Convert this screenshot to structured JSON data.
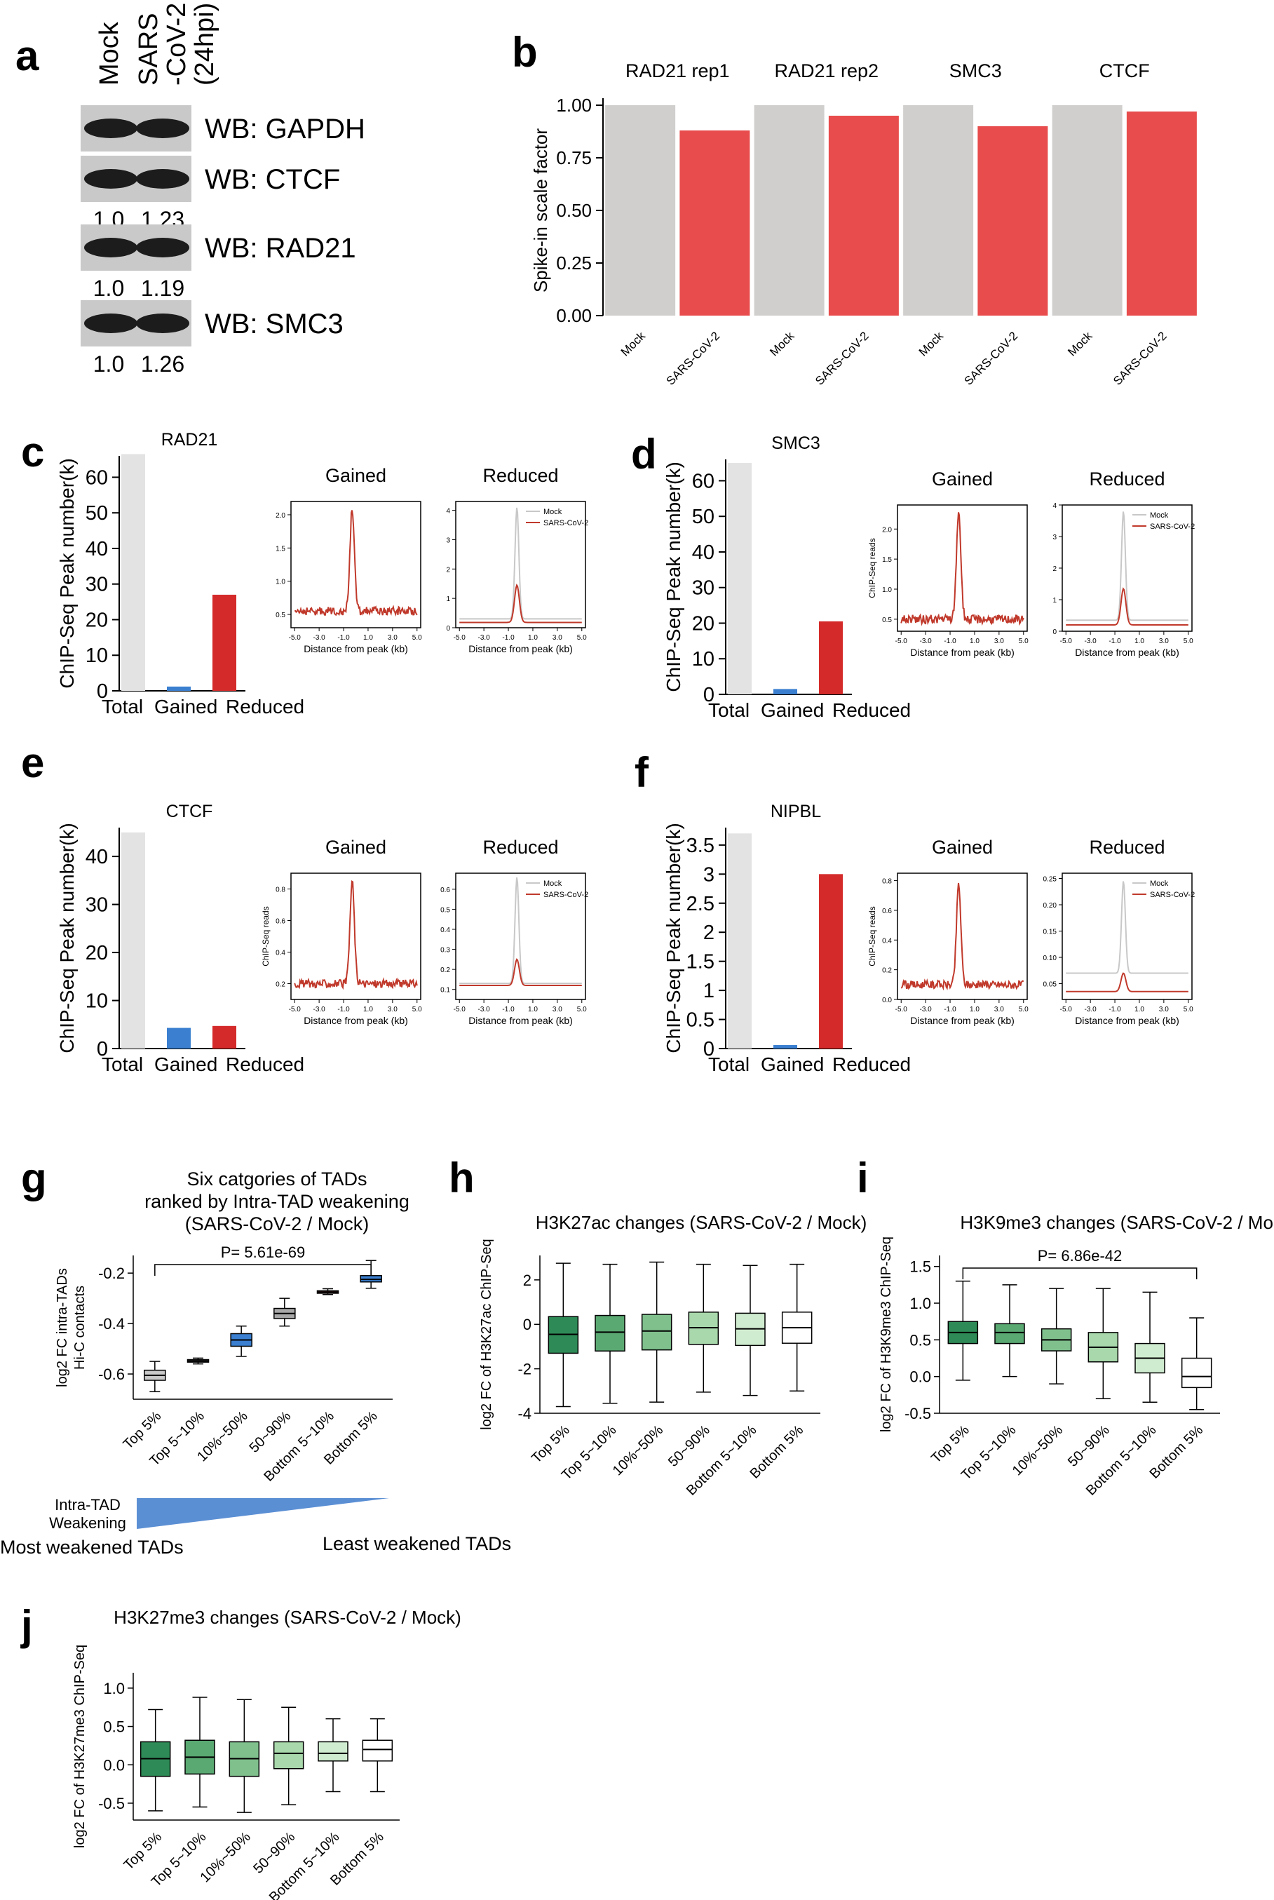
{
  "panels": {
    "a": {
      "letter": "a",
      "columns": [
        "Mock",
        "SARS-CoV-2 (24hpi)"
      ],
      "col_lines": [
        [
          "Mock"
        ],
        [
          "SARS",
          "-CoV-2",
          "(24hpi)"
        ]
      ],
      "blots": [
        {
          "name": "WB: GAPDH",
          "quant": []
        },
        {
          "name": "WB: CTCF",
          "quant": [
            "1.0",
            "1.23"
          ]
        },
        {
          "name": "WB: RAD21",
          "quant": [
            "1.0",
            "1.19"
          ]
        },
        {
          "name": "WB: SMC3",
          "quant": [
            "1.0",
            "1.26"
          ]
        }
      ]
    },
    "b": {
      "letter": "b",
      "chart_data": {
        "type": "bar",
        "ylabel": "Spike-in scale factor",
        "ylim": [
          0,
          1.0
        ],
        "yticks": [
          "0.00",
          "0.25",
          "0.50",
          "0.75",
          "1.00"
        ],
        "groups": [
          "RAD21 rep1",
          "RAD21 rep2",
          "SMC3",
          "CTCF"
        ],
        "categories": [
          "Mock",
          "SARS-CoV-2",
          "Mock",
          "SARS-CoV-2",
          "Mock",
          "SARS-CoV-2",
          "Mock",
          "SARS-CoV-2"
        ],
        "values": [
          1.0,
          0.88,
          1.0,
          0.95,
          1.0,
          0.9,
          1.0,
          0.97
        ],
        "colors": [
          "#d0cfcd",
          "#e84c4c",
          "#d0cfcd",
          "#e84c4c",
          "#d0cfcd",
          "#e84c4c",
          "#d0cfcd",
          "#e84c4c"
        ]
      }
    },
    "c": {
      "letter": "c",
      "bar": {
        "title": "RAD21",
        "ylabel": "ChIP-Seq Peak number(k)",
        "yticks": [
          "0",
          "10",
          "20",
          "30",
          "40",
          "50",
          "60"
        ],
        "ymax": 66,
        "categories": [
          "Total",
          "Gained",
          "Reduced"
        ],
        "values": [
          66.5,
          1.2,
          27
        ]
      },
      "gained": {
        "title": "Gained",
        "ylabel": "",
        "yticks": [
          "0.5",
          "1.0",
          "1.5",
          "2.0"
        ],
        "ymin": 0.3,
        "ymax": 2.2,
        "base": 0.55,
        "peak": 2.1,
        "legend": false
      },
      "reduced": {
        "title": "Reduced",
        "ylabel": "",
        "yticks": [
          "0",
          "1",
          "2",
          "3",
          "4"
        ],
        "ymin": 0,
        "ymax": 4.3,
        "mock_base": 0.3,
        "mock_peak": 4.1,
        "sars_base": 0.18,
        "sars_peak": 1.45,
        "legend": true
      }
    },
    "d": {
      "letter": "d",
      "bar": {
        "title": "SMC3",
        "ylabel": "ChIP-Seq Peak number(k)",
        "yticks": [
          "0",
          "10",
          "20",
          "30",
          "40",
          "50",
          "60"
        ],
        "ymax": 66,
        "categories": [
          "Total",
          "Gained",
          "Reduced"
        ],
        "values": [
          65,
          1.5,
          20.5
        ]
      },
      "gained": {
        "title": "Gained",
        "ylabel": "ChIP-Seq reads",
        "yticks": [
          "0.5",
          "1.0",
          "1.5",
          "2.0"
        ],
        "ymin": 0.3,
        "ymax": 2.4,
        "base": 0.5,
        "peak": 2.3,
        "legend": false
      },
      "reduced": {
        "title": "Reduced",
        "ylabel": "",
        "yticks": [
          "0",
          "1",
          "2",
          "3",
          "4"
        ],
        "ymin": 0,
        "ymax": 4.0,
        "mock_base": 0.35,
        "mock_peak": 3.8,
        "sars_base": 0.2,
        "sars_peak": 1.35,
        "legend": true
      }
    },
    "e": {
      "letter": "e",
      "bar": {
        "title": "CTCF",
        "ylabel": "ChIP-Seq Peak number(k)",
        "yticks": [
          "0",
          "10",
          "20",
          "30",
          "40"
        ],
        "ymax": 46,
        "categories": [
          "Total",
          "Gained",
          "Reduced"
        ],
        "values": [
          45,
          4.3,
          4.7
        ]
      },
      "gained": {
        "title": "Gained",
        "ylabel": "ChIP-Seq reads",
        "yticks": [
          "0.2",
          "0.4",
          "0.6",
          "0.8"
        ],
        "ymin": 0.1,
        "ymax": 0.9,
        "base": 0.2,
        "peak": 0.85,
        "legend": false
      },
      "reduced": {
        "title": "Reduced",
        "ylabel": "",
        "yticks": [
          "0.1",
          "0.2",
          "0.3",
          "0.4",
          "0.5",
          "0.6"
        ],
        "ymin": 0.05,
        "ymax": 0.68,
        "mock_base": 0.13,
        "mock_peak": 0.66,
        "sars_base": 0.12,
        "sars_peak": 0.25,
        "legend": true
      }
    },
    "f": {
      "letter": "f",
      "bar": {
        "title": "NIPBL",
        "ylabel": "ChIP-Seq Peak number(k)",
        "yticks": [
          "0",
          "0.5",
          "1",
          "1.5",
          "2",
          "2.5",
          "3",
          "3.5"
        ],
        "ymax": 3.8,
        "categories": [
          "Total",
          "Gained",
          "Reduced"
        ],
        "values": [
          3.7,
          0.06,
          3.0
        ]
      },
      "gained": {
        "title": "Gained",
        "ylabel": "ChIP-Seq reads",
        "yticks": [
          "0.0",
          "0.2",
          "0.4",
          "0.6",
          "0.8"
        ],
        "ymin": 0,
        "ymax": 0.85,
        "base": 0.1,
        "peak": 0.78,
        "legend": false
      },
      "reduced": {
        "title": "Reduced",
        "ylabel": "",
        "yticks": [
          "0.05",
          "0.10",
          "0.15",
          "0.20",
          "0.25"
        ],
        "ymin": 0.02,
        "ymax": 0.26,
        "mock_base": 0.07,
        "mock_peak": 0.245,
        "sars_base": 0.035,
        "sars_peak": 0.07,
        "legend": true
      }
    },
    "g": {
      "letter": "g",
      "chart_data": {
        "type": "box",
        "title_lines": [
          "Six catgories of TADs",
          "ranked by Intra-TAD weakening",
          "(SARS-CoV-2 / Mock)"
        ],
        "ylabel_lines": [
          "log2 FC intra-TADs",
          "Hi-C contacts"
        ],
        "ylim": [
          -0.7,
          -0.13
        ],
        "yticks": [
          "-0.6",
          "-0.4",
          "-0.2"
        ],
        "pvalue": "P= 5.61e-69",
        "categories": [
          "Top 5%",
          "Top 5~10%",
          "10%~50%",
          "50~90%",
          "Bottom 5~10%",
          "Bottom 5%"
        ],
        "boxes": [
          {
            "min": -0.67,
            "q1": -0.625,
            "median": -0.605,
            "q3": -0.585,
            "max": -0.55
          },
          {
            "min": -0.56,
            "q1": -0.553,
            "median": -0.548,
            "q3": -0.543,
            "max": -0.537
          },
          {
            "min": -0.53,
            "q1": -0.49,
            "median": -0.465,
            "q3": -0.44,
            "max": -0.41
          },
          {
            "min": -0.41,
            "q1": -0.38,
            "median": -0.36,
            "q3": -0.34,
            "max": -0.3
          },
          {
            "min": -0.285,
            "q1": -0.28,
            "median": -0.275,
            "q3": -0.27,
            "max": -0.262
          },
          {
            "min": -0.26,
            "q1": -0.235,
            "median": -0.225,
            "q3": -0.21,
            "max": -0.15
          }
        ],
        "box_colors": [
          "#c9c9c9",
          "#6f6f6f",
          "#3a7fd0",
          "#a8a8a8",
          "#b02a28",
          "#3a7fd0"
        ],
        "gradient_label_lines": [
          "Intra-TAD",
          "Weakening"
        ],
        "most_label": "Most weakened TADs",
        "least_label": "Least weakened TADs"
      }
    },
    "h": {
      "letter": "h",
      "chart_data": {
        "type": "box",
        "title": "H3K27ac changes (SARS-CoV-2 / Mock)",
        "ylabel": "log2 FC of H3K27ac ChIP-Seq",
        "ylim": [
          -4,
          3.1
        ],
        "yticks": [
          "-4",
          "-2",
          "0",
          "2"
        ],
        "categories": [
          "Top 5%",
          "Top 5~10%",
          "10%~50%",
          "50~90%",
          "Bottom 5~10%",
          "Bottom 5%"
        ],
        "boxes": [
          {
            "min": -3.7,
            "q1": -1.3,
            "median": -0.45,
            "q3": 0.35,
            "max": 2.75
          },
          {
            "min": -3.55,
            "q1": -1.2,
            "median": -0.35,
            "q3": 0.4,
            "max": 2.7
          },
          {
            "min": -3.5,
            "q1": -1.15,
            "median": -0.3,
            "q3": 0.45,
            "max": 2.8
          },
          {
            "min": -3.05,
            "q1": -0.9,
            "median": -0.15,
            "q3": 0.55,
            "max": 2.7
          },
          {
            "min": -3.2,
            "q1": -0.95,
            "median": -0.2,
            "q3": 0.5,
            "max": 2.65
          },
          {
            "min": -3.0,
            "q1": -0.85,
            "median": -0.15,
            "q3": 0.55,
            "max": 2.7
          }
        ],
        "box_colors": [
          "#2e8b57",
          "#5aa872",
          "#7fc08d",
          "#a8d8ab",
          "#d0ecd0",
          "#ffffff"
        ]
      }
    },
    "i": {
      "letter": "i",
      "chart_data": {
        "type": "box",
        "title": "H3K9me3 changes (SARS-CoV-2 / Mock)",
        "ylabel": "log2 FC of H3K9me3 ChIP-Seq",
        "ylim": [
          -0.5,
          1.65
        ],
        "yticks": [
          "-0.5",
          "0.0",
          "0.5",
          "1.0",
          "1.5"
        ],
        "pvalue": "P= 6.86e-42",
        "categories": [
          "Top 5%",
          "Top 5~10%",
          "10%~50%",
          "50~90%",
          "Bottom 5~10%",
          "Bottom 5%"
        ],
        "boxes": [
          {
            "min": -0.05,
            "q1": 0.45,
            "median": 0.6,
            "q3": 0.75,
            "max": 1.3
          },
          {
            "min": 0.0,
            "q1": 0.45,
            "median": 0.6,
            "q3": 0.72,
            "max": 1.25
          },
          {
            "min": -0.1,
            "q1": 0.35,
            "median": 0.5,
            "q3": 0.65,
            "max": 1.2
          },
          {
            "min": -0.3,
            "q1": 0.2,
            "median": 0.4,
            "q3": 0.6,
            "max": 1.2
          },
          {
            "min": -0.35,
            "q1": 0.05,
            "median": 0.25,
            "q3": 0.45,
            "max": 1.15
          },
          {
            "min": -0.45,
            "q1": -0.15,
            "median": 0.0,
            "q3": 0.25,
            "max": 0.8
          }
        ],
        "box_colors": [
          "#2e8b57",
          "#5aa872",
          "#7fc08d",
          "#a8d8ab",
          "#d0ecd0",
          "#ffffff"
        ]
      }
    },
    "j": {
      "letter": "j",
      "chart_data": {
        "type": "box",
        "title": "H3K27me3 changes (SARS-CoV-2 / Mock)",
        "ylabel": "log2 FC of H3K27me3 ChIP-Seq",
        "ylim": [
          -0.72,
          1.2
        ],
        "yticks": [
          "-0.5",
          "0.0",
          "0.5",
          "1.0"
        ],
        "categories": [
          "Top 5%",
          "Top 5~10%",
          "10%~50%",
          "50~90%",
          "Bottom 5~10%",
          "Bottom 5%"
        ],
        "boxes": [
          {
            "min": -0.6,
            "q1": -0.15,
            "median": 0.08,
            "q3": 0.3,
            "max": 0.72
          },
          {
            "min": -0.55,
            "q1": -0.12,
            "median": 0.1,
            "q3": 0.32,
            "max": 0.88
          },
          {
            "min": -0.62,
            "q1": -0.15,
            "median": 0.08,
            "q3": 0.3,
            "max": 0.85
          },
          {
            "min": -0.52,
            "q1": -0.05,
            "median": 0.15,
            "q3": 0.3,
            "max": 0.75
          },
          {
            "min": -0.35,
            "q1": 0.05,
            "median": 0.15,
            "q3": 0.3,
            "max": 0.6
          },
          {
            "min": -0.35,
            "q1": 0.05,
            "median": 0.2,
            "q3": 0.32,
            "max": 0.6
          }
        ],
        "box_colors": [
          "#2e8b57",
          "#5aa872",
          "#7fc08d",
          "#a8d8ab",
          "#d0ecd0",
          "#ffffff"
        ]
      }
    }
  },
  "profile": {
    "xlabel": "Distance from peak (kb)",
    "xticks": [
      "-5.0",
      "-3.0",
      "-1.0",
      "1.0",
      "3.0",
      "5.0"
    ],
    "legend_mock": "Mock",
    "legend_sars": "SARS-CoV-2",
    "mock_color": "#c8c8c8",
    "sars_color": "#c0392b"
  }
}
